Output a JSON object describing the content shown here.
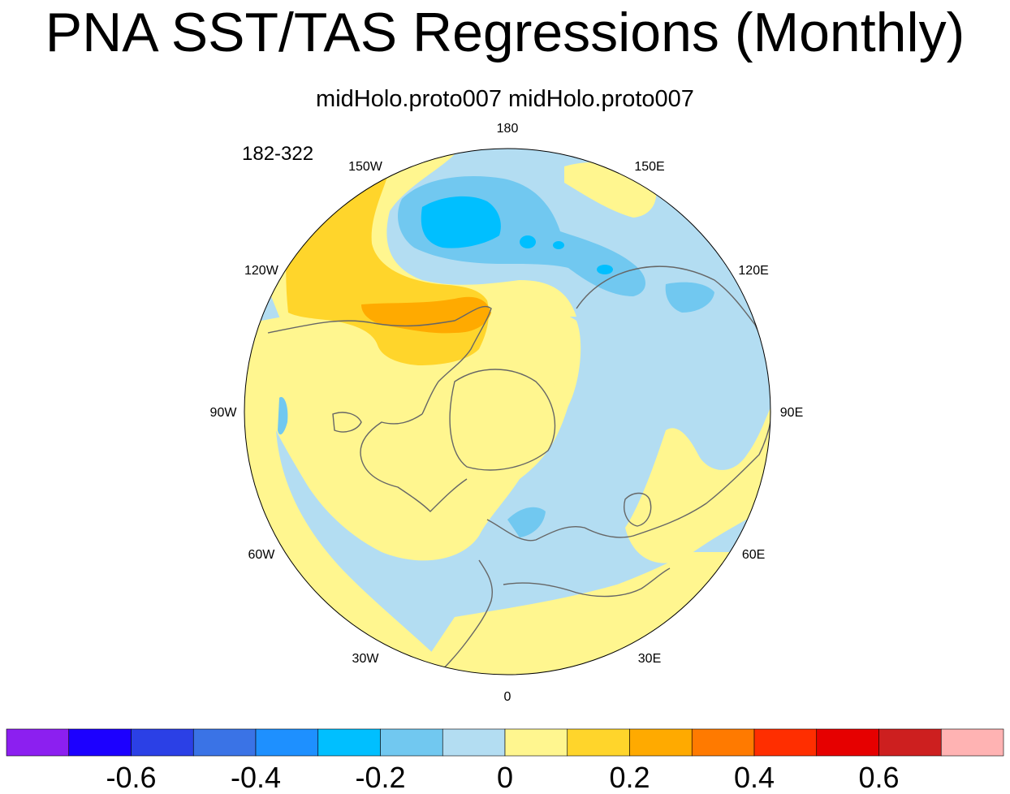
{
  "title": "PNA SST/TAS Regressions (Monthly)",
  "subtitle": "midHolo.proto007  midHolo.proto007",
  "period": "182-322",
  "longitude_labels": [
    {
      "text": "180",
      "angle": 0
    },
    {
      "text": "150E",
      "angle": 30
    },
    {
      "text": "120E",
      "angle": 60
    },
    {
      "text": "90E",
      "angle": 90
    },
    {
      "text": "60E",
      "angle": 120
    },
    {
      "text": "30E",
      "angle": 150
    },
    {
      "text": "0",
      "angle": 180
    },
    {
      "text": "30W",
      "angle": 210
    },
    {
      "text": "60W",
      "angle": 240
    },
    {
      "text": "90W",
      "angle": 270
    },
    {
      "text": "120W",
      "angle": 300
    },
    {
      "text": "150W",
      "angle": 330
    }
  ],
  "colorbar": {
    "colors": [
      "#8c1ff0",
      "#1c00ff",
      "#2b40e6",
      "#3a73e6",
      "#1e90ff",
      "#00bfff",
      "#71c8f0",
      "#b3ddf2",
      "#fff68f",
      "#ffd52b",
      "#ffaa00",
      "#ff7a00",
      "#ff2e00",
      "#e60000",
      "#cd1f1f",
      "#ffb3b3"
    ],
    "tick_labels": [
      "-0.6",
      "-0.4",
      "-0.2",
      "0",
      "0.2",
      "0.4",
      "0.6"
    ],
    "tick_values": [
      -0.6,
      -0.4,
      -0.2,
      0,
      0.2,
      0.4,
      0.6
    ],
    "level_step": 0.1,
    "min": -0.8,
    "max": 0.8
  }
}
